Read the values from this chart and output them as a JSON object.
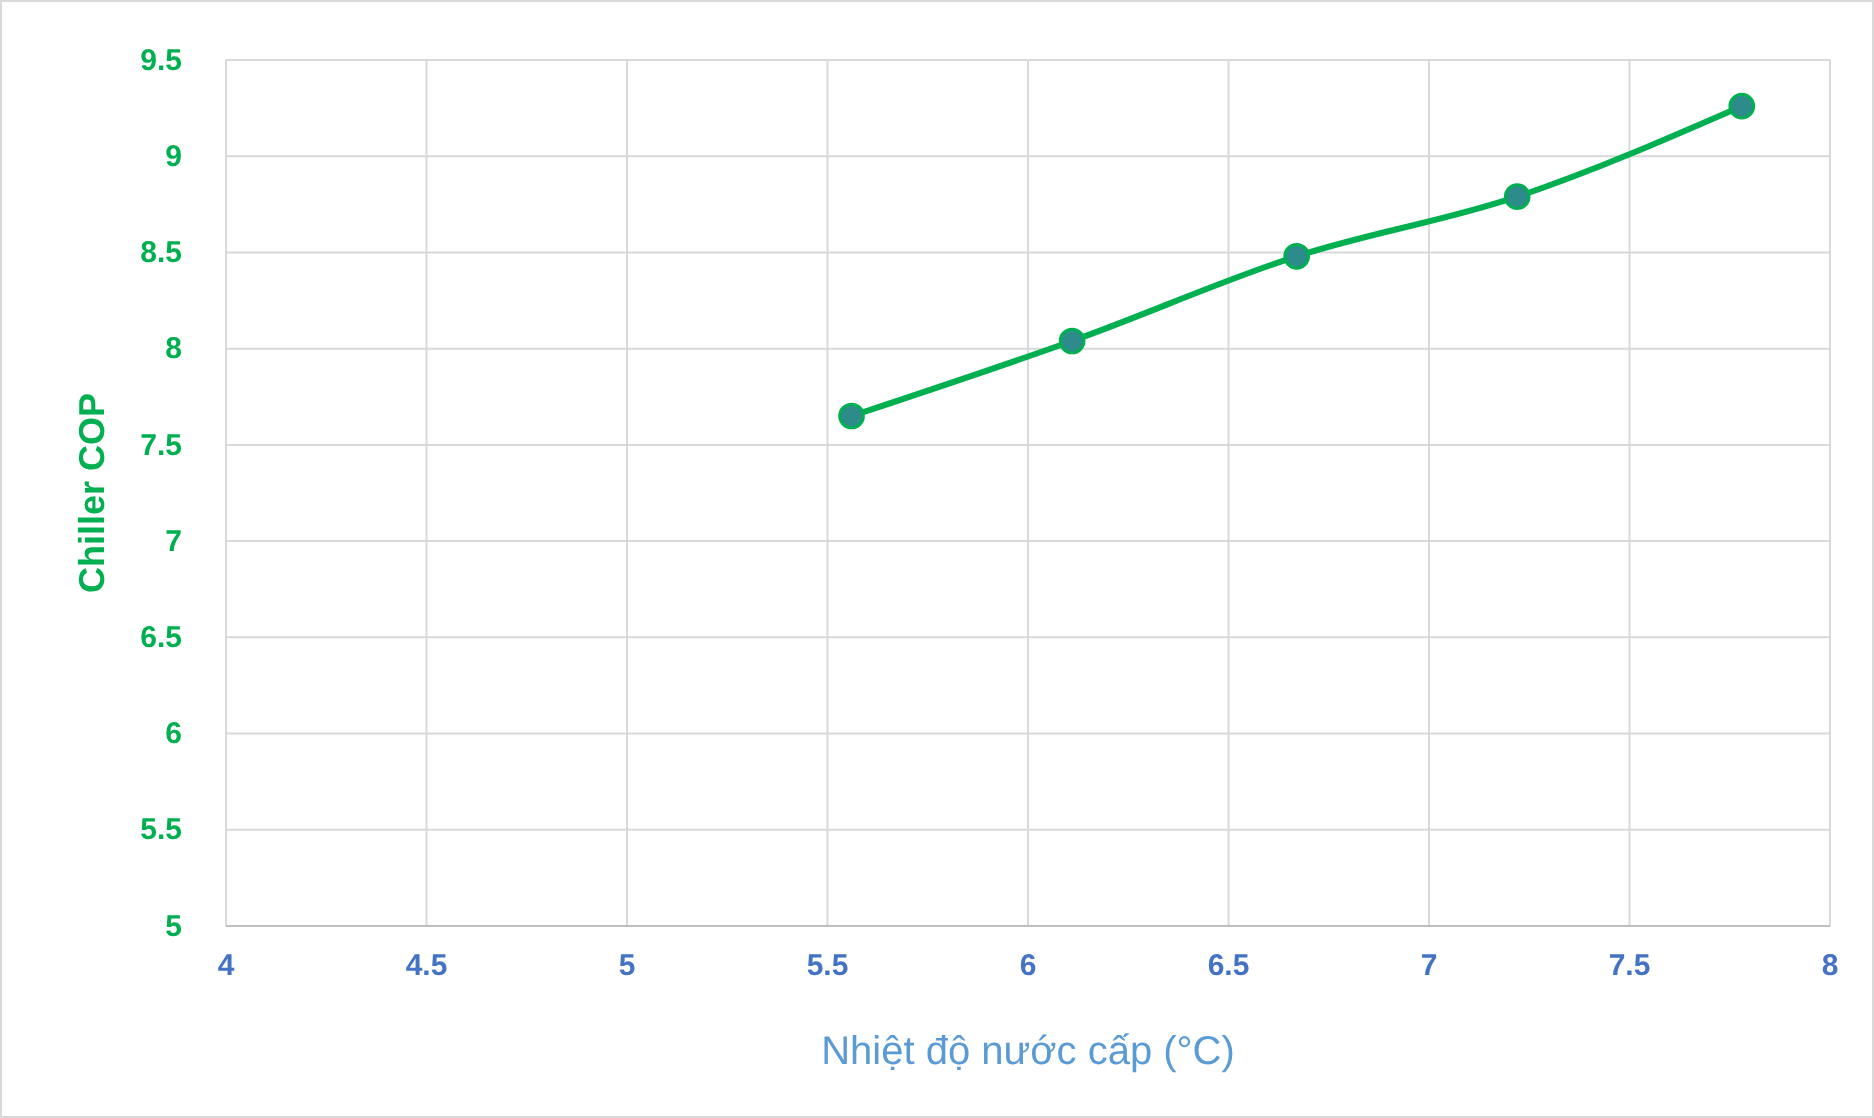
{
  "chart_data": {
    "type": "line",
    "xlabel": "Nhiệt độ nước cấp (°C)",
    "ylabel": "Chiller COP",
    "x": [
      5.56,
      6.11,
      6.67,
      7.22,
      7.78
    ],
    "series": [
      {
        "color": "#00b050",
        "values": [
          7.65,
          8.04,
          8.48,
          8.79,
          9.26
        ]
      }
    ],
    "xlim": [
      4,
      8
    ],
    "xticks": [
      4,
      4.5,
      5,
      5.5,
      6,
      6.5,
      7,
      7.5,
      8
    ],
    "ylim": [
      5,
      9.5
    ],
    "yticks": [
      5,
      5.5,
      6,
      6.5,
      7,
      7.5,
      8,
      8.5,
      9,
      9.5
    ],
    "grid": true,
    "marker": "circle",
    "line_style": "solid"
  }
}
